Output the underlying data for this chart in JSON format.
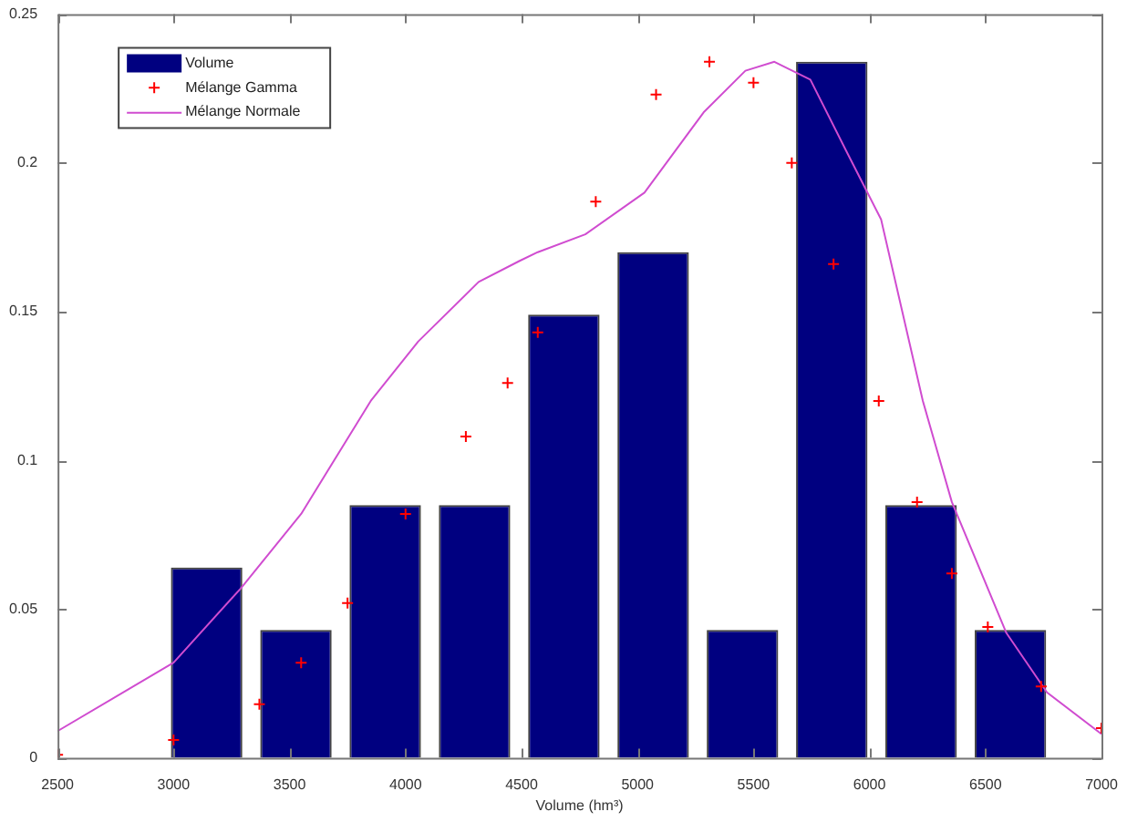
{
  "chart_data": {
    "type": "histogram",
    "xlabel": "Volume (hm³)",
    "bins": [
      2950,
      3335,
      3720,
      4105,
      4490,
      4875,
      5260,
      5645,
      6030,
      6415,
      6800
    ],
    "series": [
      {
        "name": "Volume",
        "color": "#000080",
        "values": [
          0.064,
          0.043,
          0.085,
          0.085,
          0.149,
          0.17,
          0.043,
          0.234,
          0.085,
          0.043
        ]
      },
      {
        "name": "Mélange Gamma",
        "type": "scatter",
        "marker": "cross",
        "color": "#ff0000",
        "x": [
          2500,
          3000,
          3370,
          3550,
          3750,
          4000,
          4260,
          4440,
          4570,
          4820,
          5080,
          5310,
          5500,
          5665,
          5845,
          6040,
          6205,
          6355,
          6510,
          6740,
          7000
        ],
        "values": [
          0.001,
          0.006,
          0.018,
          0.032,
          0.052,
          0.082,
          0.108,
          0.126,
          0.143,
          0.187,
          0.223,
          0.234,
          0.227,
          0.2,
          0.166,
          0.12,
          0.086,
          0.062,
          0.044,
          0.024,
          0.01
        ]
      },
      {
        "name": "Mélange Normale",
        "type": "line",
        "marker": "none",
        "color": "#d04cd0",
        "x": [
          2500,
          3000,
          3290,
          3550,
          3850,
          4055,
          4315,
          4490,
          4570,
          4775,
          5030,
          5285,
          5465,
          5590,
          5745,
          5900,
          6050,
          6230,
          6355,
          6590,
          6765,
          7000
        ],
        "values": [
          0.009,
          0.032,
          0.057,
          0.082,
          0.12,
          0.14,
          0.16,
          0.167,
          0.17,
          0.176,
          0.19,
          0.217,
          0.231,
          0.234,
          0.228,
          0.204,
          0.181,
          0.12,
          0.086,
          0.042,
          0.022,
          0.008
        ]
      }
    ],
    "xlim": [
      2500,
      7000
    ],
    "xticks": [
      2500,
      3000,
      3500,
      4000,
      4500,
      5000,
      5500,
      6000,
      6500,
      7000
    ],
    "ylim": [
      0,
      0.25
    ],
    "yticks": [
      0,
      0.05,
      0.1,
      0.15,
      0.2,
      0.25
    ],
    "legend": "top left"
  }
}
